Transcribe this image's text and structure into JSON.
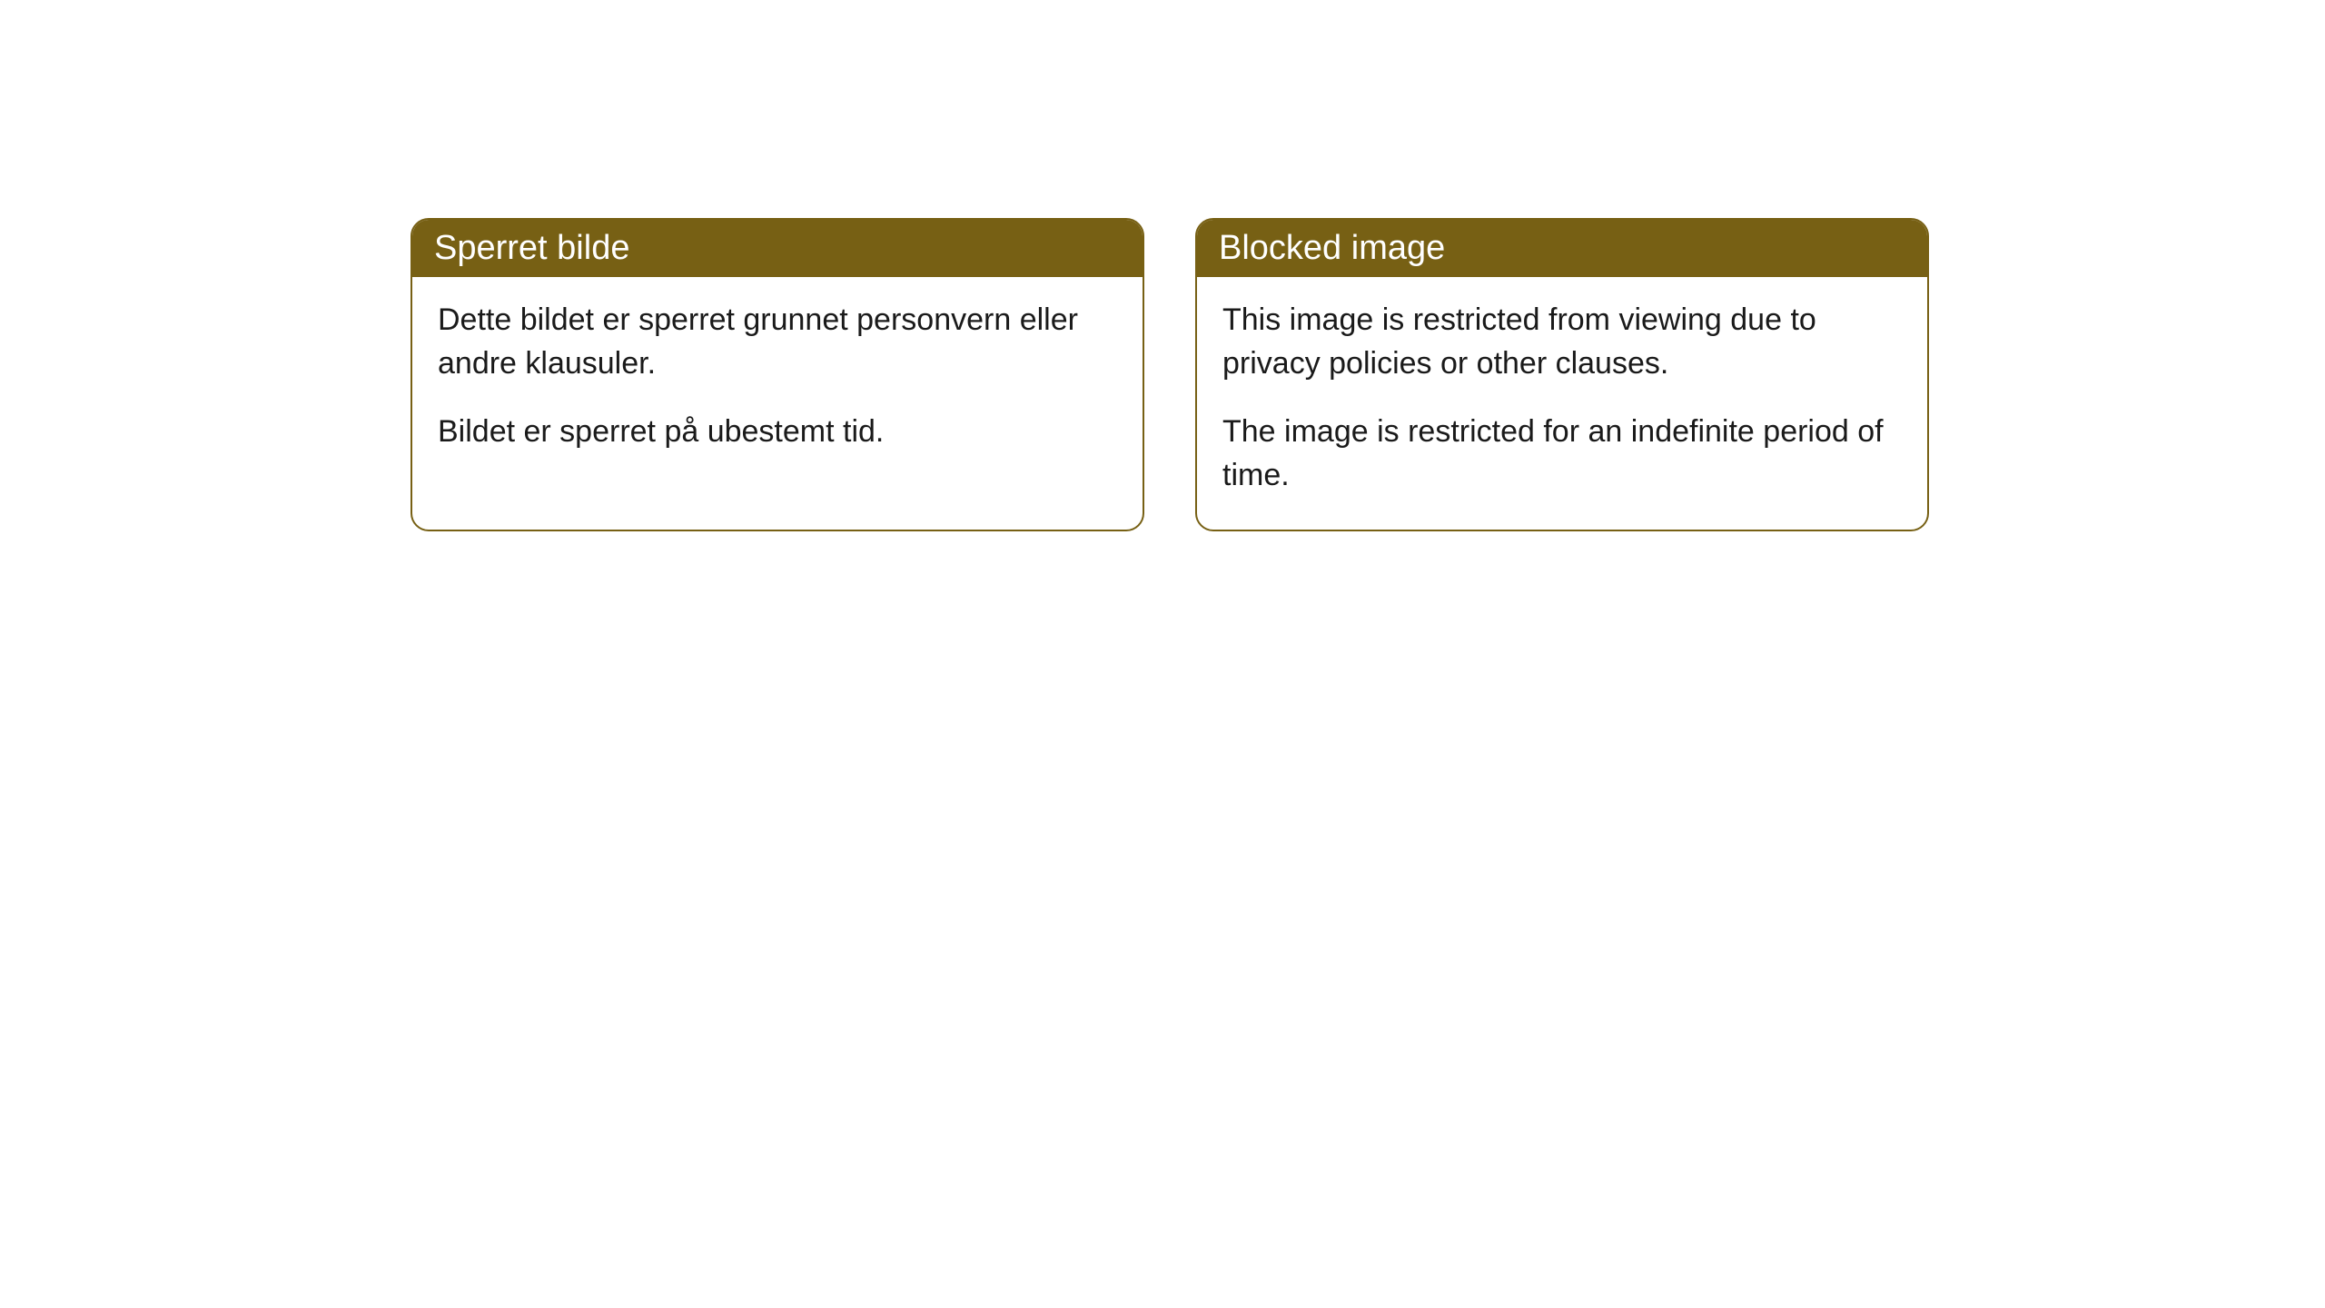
{
  "cards": [
    {
      "title": "Sperret bilde",
      "paragraph1": "Dette bildet er sperret grunnet personvern eller andre klausuler.",
      "paragraph2": "Bildet er sperret på ubestemt tid."
    },
    {
      "title": "Blocked image",
      "paragraph1": "This image is restricted from viewing due to privacy policies or other clauses.",
      "paragraph2": "The image is restricted for an indefinite period of time."
    }
  ],
  "styling": {
    "header_bg_color": "#776014",
    "header_text_color": "#ffffff",
    "border_color": "#776014",
    "body_bg_color": "#ffffff",
    "body_text_color": "#1a1a1a",
    "border_radius": 20,
    "header_fontsize": 38,
    "body_fontsize": 34
  }
}
